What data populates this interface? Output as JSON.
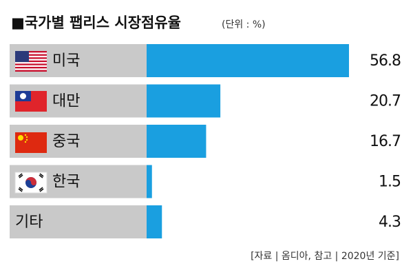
{
  "chart_data": {
    "type": "bar",
    "orientation": "horizontal",
    "title": "■국가별 팹리스 시장점유율",
    "subtitle": "(단위 : %)",
    "categories": [
      "미국",
      "대만",
      "중국",
      "한국",
      "기타"
    ],
    "values": [
      56.8,
      20.7,
      16.7,
      1.5,
      4.3
    ],
    "color": "#1a9fe0",
    "label_color": "#c9c9c9",
    "source": "[자료 | 옴디아, 참고 | 2020년 기준]"
  }
}
